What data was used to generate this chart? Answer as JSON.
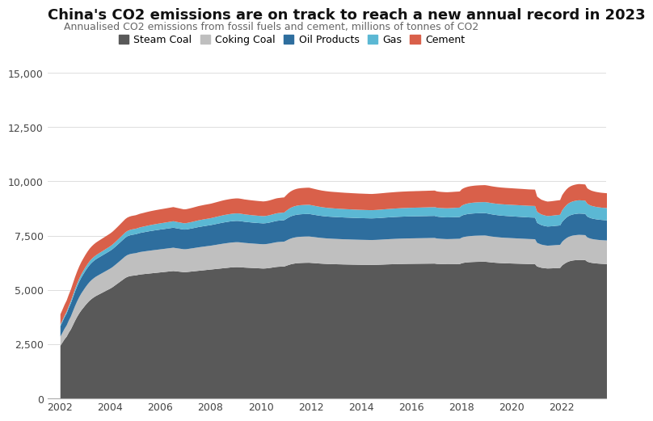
{
  "title": "China's CO2 emissions are on track to reach a new annual record in 2023",
  "subtitle": "Annualised CO2 emissions from fossil fuels and cement, millions of tonnes of CO2",
  "title_fontsize": 13,
  "subtitle_fontsize": 9,
  "colors": {
    "Steam Coal": "#595959",
    "Coking Coal": "#bfbfbf",
    "Oil Products": "#2e6e9e",
    "Gas": "#5bb8d4",
    "Cement": "#d9604a"
  },
  "legend_labels": [
    "Steam Coal",
    "Coking Coal",
    "Oil Products",
    "Gas",
    "Cement"
  ],
  "ylim": [
    0,
    15000
  ],
  "yticks": [
    0,
    2500,
    5000,
    7500,
    10000,
    12500,
    15000
  ],
  "xticks": [
    2002,
    2004,
    2006,
    2008,
    2010,
    2012,
    2014,
    2016,
    2018,
    2020,
    2022
  ],
  "xlim_min": 2001.5,
  "xlim_max": 2023.75,
  "steam_coal": [
    2450,
    2600,
    2750,
    2870,
    3050,
    3200,
    3400,
    3600,
    3780,
    3940,
    4080,
    4200,
    4320,
    4430,
    4530,
    4610,
    4680,
    4740,
    4790,
    4840,
    4890,
    4940,
    4990,
    5040,
    5090,
    5150,
    5220,
    5290,
    5360,
    5430,
    5500,
    5570,
    5620,
    5650,
    5670,
    5680,
    5690,
    5710,
    5730,
    5740,
    5750,
    5760,
    5770,
    5780,
    5790,
    5800,
    5810,
    5820,
    5830,
    5840,
    5850,
    5860,
    5870,
    5880,
    5890,
    5880,
    5870,
    5860,
    5850,
    5840,
    5840,
    5850,
    5860,
    5870,
    5880,
    5890,
    5900,
    5910,
    5920,
    5930,
    5940,
    5950,
    5960,
    5970,
    5980,
    5990,
    6000,
    6010,
    6020,
    6030,
    6040,
    6050,
    6060,
    6065,
    6070,
    6070,
    6065,
    6058,
    6050,
    6045,
    6040,
    6035,
    6030,
    6025,
    6020,
    6015,
    6010,
    6005,
    6010,
    6018,
    6030,
    6045,
    6060,
    6075,
    6085,
    6090,
    6095,
    6098,
    6130,
    6165,
    6195,
    6218,
    6235,
    6248,
    6256,
    6262,
    6266,
    6269,
    6271,
    6272,
    6265,
    6258,
    6250,
    6243,
    6236,
    6230,
    6224,
    6219,
    6215,
    6211,
    6208,
    6205,
    6203,
    6200,
    6198,
    6195,
    6193,
    6191,
    6189,
    6187,
    6185,
    6183,
    6181,
    6179,
    6178,
    6177,
    6176,
    6175,
    6174,
    6173,
    6175,
    6177,
    6180,
    6183,
    6187,
    6191,
    6195,
    6198,
    6201,
    6204,
    6207,
    6210,
    6213,
    6215,
    6217,
    6219,
    6221,
    6222,
    6223,
    6224,
    6225,
    6226,
    6227,
    6228,
    6229,
    6230,
    6231,
    6232,
    6233,
    6234,
    6220,
    6215,
    6211,
    6208,
    6205,
    6203,
    6204,
    6205,
    6207,
    6209,
    6211,
    6213,
    6250,
    6270,
    6283,
    6293,
    6300,
    6305,
    6309,
    6312,
    6314,
    6316,
    6317,
    6318,
    6310,
    6300,
    6289,
    6280,
    6272,
    6265,
    6259,
    6254,
    6250,
    6246,
    6243,
    6240,
    6237,
    6234,
    6231,
    6228,
    6225,
    6222,
    6219,
    6216,
    6213,
    6211,
    6209,
    6207,
    6100,
    6070,
    6043,
    6028,
    6016,
    6008,
    6011,
    6014,
    6019,
    6024,
    6028,
    6033,
    6150,
    6220,
    6280,
    6325,
    6355,
    6375,
    6387,
    6395,
    6401,
    6399,
    6397,
    6394,
    6320,
    6290,
    6268,
    6255,
    6244,
    6235,
    6228,
    6222,
    6217,
    6213,
    6209,
    6206,
    6210,
    6208,
    6206,
    6205,
    6205
  ],
  "coking_coal": [
    420,
    450,
    485,
    518,
    558,
    598,
    638,
    678,
    715,
    748,
    778,
    803,
    825,
    844,
    860,
    873,
    883,
    891,
    897,
    901,
    905,
    909,
    913,
    917,
    922,
    927,
    935,
    944,
    955,
    968,
    981,
    994,
    1004,
    1011,
    1016,
    1020,
    1023,
    1028,
    1033,
    1038,
    1042,
    1046,
    1049,
    1052,
    1054,
    1056,
    1058,
    1060,
    1062,
    1064,
    1066,
    1068,
    1070,
    1072,
    1074,
    1070,
    1066,
    1062,
    1058,
    1054,
    1055,
    1058,
    1062,
    1066,
    1071,
    1076,
    1082,
    1085,
    1088,
    1091,
    1094,
    1096,
    1099,
    1104,
    1110,
    1116,
    1122,
    1128,
    1133,
    1137,
    1140,
    1143,
    1145,
    1147,
    1148,
    1148,
    1145,
    1141,
    1137,
    1134,
    1131,
    1128,
    1126,
    1124,
    1122,
    1121,
    1120,
    1119,
    1120,
    1122,
    1125,
    1129,
    1133,
    1137,
    1140,
    1142,
    1144,
    1145,
    1160,
    1174,
    1185,
    1193,
    1199,
    1203,
    1206,
    1208,
    1209,
    1210,
    1210,
    1210,
    1205,
    1200,
    1196,
    1191,
    1187,
    1183,
    1180,
    1177,
    1174,
    1172,
    1170,
    1168,
    1166,
    1164,
    1162,
    1161,
    1159,
    1158,
    1157,
    1155,
    1154,
    1153,
    1152,
    1151,
    1150,
    1149,
    1148,
    1147,
    1146,
    1146,
    1147,
    1148,
    1150,
    1152,
    1154,
    1156,
    1158,
    1160,
    1162,
    1163,
    1165,
    1166,
    1167,
    1168,
    1169,
    1170,
    1171,
    1172,
    1173,
    1173,
    1174,
    1175,
    1175,
    1176,
    1177,
    1177,
    1178,
    1179,
    1179,
    1180,
    1170,
    1166,
    1163,
    1161,
    1159,
    1158,
    1159,
    1160,
    1161,
    1162,
    1163,
    1164,
    1180,
    1188,
    1194,
    1198,
    1201,
    1203,
    1205,
    1206,
    1207,
    1208,
    1208,
    1209,
    1205,
    1200,
    1195,
    1191,
    1187,
    1184,
    1181,
    1178,
    1176,
    1174,
    1172,
    1170,
    1168,
    1166,
    1164,
    1162,
    1160,
    1158,
    1156,
    1154,
    1152,
    1151,
    1150,
    1149,
    1090,
    1078,
    1067,
    1061,
    1055,
    1051,
    1053,
    1055,
    1057,
    1060,
    1062,
    1065,
    1090,
    1108,
    1123,
    1134,
    1142,
    1147,
    1151,
    1154,
    1156,
    1155,
    1153,
    1151,
    1120,
    1110,
    1103,
    1099,
    1095,
    1092,
    1090,
    1088,
    1087,
    1086,
    1085,
    1084,
    1085,
    1083,
    1082,
    1081,
    1081
  ],
  "oil_products": [
    480,
    505,
    530,
    554,
    582,
    610,
    638,
    666,
    691,
    713,
    732,
    748,
    762,
    774,
    784,
    792,
    798,
    802,
    806,
    809,
    812,
    815,
    818,
    821,
    825,
    829,
    834,
    840,
    846,
    852,
    857,
    862,
    865,
    867,
    869,
    870,
    872,
    875,
    879,
    883,
    887,
    892,
    896,
    900,
    903,
    906,
    908,
    910,
    912,
    913,
    914,
    916,
    918,
    920,
    922,
    919,
    916,
    913,
    910,
    907,
    908,
    911,
    915,
    919,
    924,
    929,
    934,
    937,
    940,
    943,
    945,
    947,
    949,
    953,
    957,
    961,
    965,
    969,
    972,
    975,
    977,
    979,
    980,
    981,
    982,
    982,
    980,
    977,
    974,
    972,
    970,
    968,
    966,
    965,
    964,
    963,
    963,
    962,
    963,
    965,
    968,
    972,
    976,
    980,
    983,
    985,
    987,
    988,
    1000,
    1011,
    1019,
    1025,
    1029,
    1032,
    1034,
    1035,
    1036,
    1036,
    1037,
    1037,
    1033,
    1029,
    1025,
    1021,
    1018,
    1015,
    1013,
    1011,
    1010,
    1009,
    1008,
    1007,
    1007,
    1006,
    1005,
    1005,
    1004,
    1003,
    1003,
    1002,
    1001,
    1001,
    1000,
    1000,
    999,
    999,
    998,
    998,
    997,
    997,
    998,
    999,
    1000,
    1001,
    1002,
    1003,
    1004,
    1005,
    1006,
    1007,
    1008,
    1009,
    1010,
    1011,
    1012,
    1012,
    1013,
    1013,
    1013,
    1013,
    1014,
    1014,
    1014,
    1015,
    1015,
    1015,
    1016,
    1016,
    1016,
    1017,
    1010,
    1007,
    1005,
    1003,
    1002,
    1001,
    1001,
    1002,
    1002,
    1003,
    1003,
    1004,
    1015,
    1020,
    1024,
    1027,
    1029,
    1030,
    1031,
    1032,
    1032,
    1033,
    1033,
    1033,
    1030,
    1027,
    1023,
    1020,
    1018,
    1015,
    1013,
    1011,
    1010,
    1008,
    1007,
    1006,
    1005,
    1003,
    1002,
    1001,
    1000,
    999,
    998,
    997,
    996,
    995,
    995,
    994,
    920,
    908,
    897,
    891,
    886,
    882,
    883,
    885,
    887,
    890,
    892,
    895,
    920,
    936,
    950,
    961,
    968,
    973,
    977,
    980,
    982,
    981,
    980,
    979,
    960,
    952,
    946,
    942,
    939,
    937,
    935,
    933,
    932,
    931,
    930,
    930,
    932,
    930,
    929,
    928,
    928
  ],
  "gas": [
    65,
    70,
    76,
    83,
    91,
    100,
    110,
    121,
    131,
    140,
    148,
    155,
    161,
    166,
    171,
    175,
    179,
    183,
    187,
    190,
    193,
    196,
    199,
    202,
    205,
    209,
    213,
    218,
    223,
    228,
    234,
    239,
    243,
    246,
    248,
    250,
    252,
    254,
    257,
    260,
    263,
    267,
    270,
    274,
    277,
    280,
    282,
    284,
    286,
    288,
    290,
    292,
    294,
    296,
    298,
    297,
    295,
    294,
    292,
    291,
    292,
    294,
    296,
    299,
    302,
    305,
    308,
    310,
    312,
    314,
    315,
    317,
    319,
    322,
    325,
    328,
    331,
    334,
    337,
    339,
    341,
    342,
    343,
    344,
    345,
    345,
    344,
    343,
    341,
    340,
    339,
    338,
    337,
    336,
    335,
    334,
    334,
    333,
    334,
    336,
    338,
    341,
    344,
    347,
    349,
    350,
    352,
    353,
    370,
    384,
    395,
    403,
    410,
    415,
    418,
    420,
    421,
    422,
    423,
    423,
    420,
    417,
    414,
    411,
    408,
    405,
    403,
    401,
    399,
    397,
    396,
    394,
    393,
    392,
    390,
    389,
    388,
    387,
    386,
    385,
    384,
    383,
    382,
    381,
    381,
    380,
    379,
    379,
    378,
    378,
    379,
    380,
    381,
    382,
    383,
    384,
    385,
    386,
    387,
    388,
    389,
    390,
    391,
    392,
    393,
    393,
    394,
    395,
    395,
    396,
    397,
    397,
    398,
    399,
    399,
    400,
    401,
    401,
    402,
    402,
    410,
    412,
    414,
    416,
    418,
    420,
    422,
    424,
    427,
    429,
    431,
    433,
    460,
    472,
    481,
    488,
    493,
    497,
    500,
    502,
    504,
    505,
    506,
    507,
    510,
    513,
    516,
    518,
    520,
    522,
    523,
    524,
    525,
    526,
    527,
    528,
    529,
    530,
    531,
    532,
    533,
    534,
    534,
    535,
    535,
    536,
    536,
    537,
    510,
    501,
    493,
    489,
    485,
    483,
    484,
    485,
    487,
    488,
    490,
    491,
    530,
    552,
    570,
    584,
    593,
    600,
    605,
    609,
    611,
    610,
    609,
    608,
    590,
    583,
    577,
    573,
    570,
    568,
    566,
    565,
    564,
    563,
    562,
    561,
    565,
    564,
    563,
    562,
    562
  ],
  "cement": [
    480,
    490,
    500,
    510,
    520,
    530,
    540,
    548,
    555,
    561,
    566,
    570,
    573,
    576,
    578,
    580,
    581,
    583,
    584,
    585,
    586,
    587,
    588,
    589,
    591,
    593,
    596,
    599,
    603,
    608,
    612,
    616,
    619,
    621,
    622,
    623,
    624,
    626,
    628,
    630,
    632,
    635,
    637,
    639,
    641,
    642,
    644,
    645,
    646,
    647,
    649,
    650,
    651,
    652,
    653,
    650,
    648,
    645,
    643,
    640,
    641,
    643,
    645,
    648,
    651,
    654,
    657,
    659,
    661,
    663,
    664,
    665,
    667,
    670,
    673,
    676,
    679,
    682,
    685,
    687,
    688,
    689,
    690,
    691,
    691,
    691,
    690,
    689,
    687,
    686,
    684,
    683,
    682,
    681,
    680,
    679,
    678,
    677,
    678,
    680,
    682,
    685,
    688,
    691,
    693,
    694,
    696,
    697,
    720,
    740,
    755,
    766,
    773,
    779,
    782,
    784,
    785,
    786,
    787,
    787,
    783,
    779,
    775,
    771,
    768,
    765,
    763,
    761,
    760,
    758,
    757,
    757,
    756,
    755,
    754,
    753,
    752,
    751,
    751,
    750,
    750,
    749,
    749,
    748,
    748,
    747,
    747,
    746,
    746,
    746,
    747,
    748,
    749,
    750,
    751,
    752,
    753,
    754,
    755,
    756,
    757,
    758,
    758,
    759,
    759,
    760,
    760,
    761,
    761,
    762,
    762,
    762,
    763,
    763,
    763,
    764,
    764,
    764,
    765,
    765,
    750,
    746,
    743,
    741,
    739,
    738,
    739,
    739,
    740,
    741,
    741,
    742,
    755,
    762,
    767,
    771,
    774,
    776,
    778,
    779,
    780,
    780,
    781,
    781,
    780,
    778,
    776,
    774,
    772,
    770,
    769,
    768,
    767,
    766,
    765,
    764,
    763,
    762,
    761,
    760,
    759,
    758,
    757,
    756,
    755,
    755,
    754,
    754,
    700,
    689,
    679,
    674,
    669,
    666,
    667,
    668,
    670,
    671,
    673,
    674,
    700,
    713,
    724,
    732,
    738,
    742,
    745,
    747,
    748,
    748,
    747,
    746,
    710,
    703,
    698,
    694,
    691,
    689,
    687,
    686,
    685,
    684,
    683,
    683,
    685,
    683,
    682,
    681,
    681
  ]
}
